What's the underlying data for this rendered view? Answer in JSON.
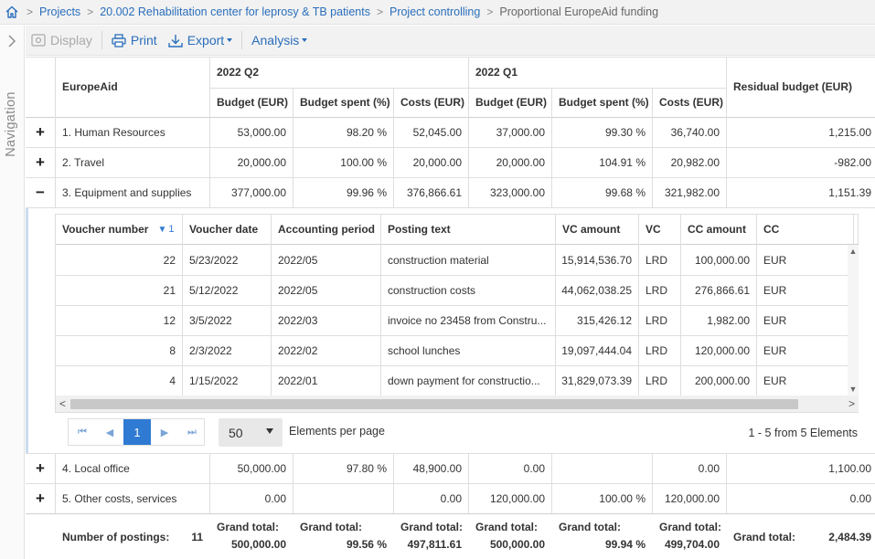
{
  "breadcrumb": {
    "items": [
      "Projects",
      "20.002 Rehabilitation center for leprosy & TB patients",
      "Project controlling"
    ],
    "current": "Proportional EuropeAid funding"
  },
  "nav": {
    "label": "Navigation"
  },
  "toolbar": {
    "display": "Display",
    "print": "Print",
    "export": "Export",
    "analysis": "Analysis"
  },
  "table": {
    "first_col_header": "EuropeAid",
    "groups": [
      "2022 Q2",
      "2022 Q1"
    ],
    "residual_header": "Residual budget (EUR)",
    "sub_headers": [
      "Budget (EUR)",
      "Budget spent (%)",
      "Costs (EUR)",
      "Budget (EUR)",
      "Budget spent (%)",
      "Costs (EUR)"
    ],
    "rows_top": [
      {
        "expander": "+",
        "name": "1. Human Resources",
        "cells": [
          "53,000.00",
          "98.20 %",
          "52,045.00",
          "37,000.00",
          "99.30 %",
          "36,740.00",
          "1,215.00"
        ]
      },
      {
        "expander": "+",
        "name": "2. Travel",
        "cells": [
          "20,000.00",
          "100.00 %",
          "20,000.00",
          "20,000.00",
          "104.91 %",
          "20,982.00",
          "-982.00"
        ]
      },
      {
        "expander": "−",
        "name": "3. Equipment and supplies",
        "cells": [
          "377,000.00",
          "99.96 %",
          "376,866.61",
          "323,000.00",
          "99.68 %",
          "321,982.00",
          "1,151.39"
        ]
      }
    ],
    "rows_bottom": [
      {
        "expander": "+",
        "name": "4. Local office",
        "cells": [
          "50,000.00",
          "97.80 %",
          "48,900.00",
          "0.00",
          "",
          "0.00",
          "1,100.00"
        ]
      },
      {
        "expander": "+",
        "name": "5. Other costs, services",
        "cells": [
          "0.00",
          "",
          "0.00",
          "120,000.00",
          "100.00 %",
          "120,000.00",
          "0.00"
        ]
      }
    ],
    "footer": {
      "postings_label": "Number of postings:",
      "postings_value": "11",
      "grand_label": "Grand total:",
      "grand_values": [
        "500,000.00",
        "99.56 %",
        "497,811.61",
        "500,000.00",
        "99.94 %",
        "499,704.00"
      ],
      "residual_value": "2,484.39"
    }
  },
  "vouchers": {
    "headers": [
      "Voucher number",
      "Voucher date",
      "Accounting period",
      "Posting text",
      "VC amount",
      "VC",
      "CC amount",
      "CC"
    ],
    "sort_index": "1",
    "rows": [
      [
        "22",
        "5/23/2022",
        "2022/05",
        "construction material",
        "15,914,536.70",
        "LRD",
        "100,000.00",
        "EUR"
      ],
      [
        "21",
        "5/12/2022",
        "2022/05",
        "construction costs",
        "44,062,038.25",
        "LRD",
        "276,866.61",
        "EUR"
      ],
      [
        "12",
        "3/5/2022",
        "2022/03",
        "invoice no 23458 from Constru...",
        "315,426.12",
        "LRD",
        "1,982.00",
        "EUR"
      ],
      [
        "8",
        "2/3/2022",
        "2022/02",
        "school lunches",
        "19,097,444.04",
        "LRD",
        "120,000.00",
        "EUR"
      ],
      [
        "4",
        "1/15/2022",
        "2022/01",
        "down payment for constructio...",
        "31,829,073.39",
        "LRD",
        "200,000.00",
        "EUR"
      ]
    ],
    "pager": {
      "current_page": "1",
      "page_size": "50",
      "page_size_label": "Elements per page",
      "summary": "1 - 5 from 5 Elements"
    }
  },
  "colors": {
    "link": "#2a6ebb",
    "active_page": "#2f7bd4",
    "border": "#dedede"
  }
}
